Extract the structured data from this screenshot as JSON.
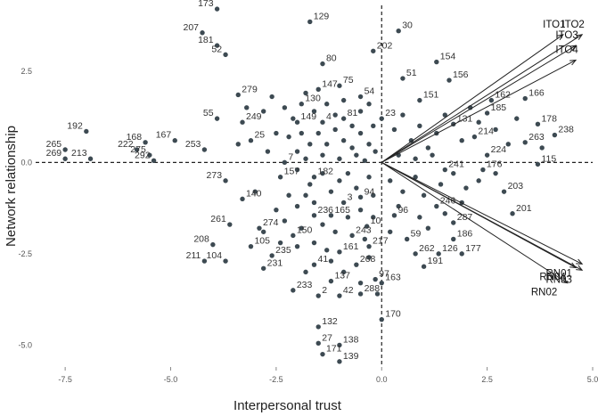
{
  "chart_data": {
    "type": "scatter",
    "title": "",
    "xlabel": "Interpersonal trust",
    "ylabel": "Network relationship",
    "xlim": [
      -8.2,
      5.0
    ],
    "ylim": [
      -5.6,
      4.3
    ],
    "x_ticks": [
      "-7.5",
      "-5.0",
      "-2.5",
      "0.0",
      "2.5",
      "5.0"
    ],
    "y_ticks": [
      "2.5",
      "0.0",
      "-2.5",
      "-5.0"
    ],
    "reference_lines": {
      "x": 0,
      "y": 0,
      "style": "dashed"
    },
    "grid": false,
    "colors": {
      "points": "#3d4a52",
      "vectors": "#222222",
      "labels": "#333333"
    },
    "vectors": [
      {
        "name": "ITO1",
        "x": 4.3,
        "y": 3.5
      },
      {
        "name": "ITO2",
        "x": 4.75,
        "y": 3.5
      },
      {
        "name": "ITO3",
        "x": 4.6,
        "y": 3.2
      },
      {
        "name": "ITO4",
        "x": 4.6,
        "y": 2.8
      },
      {
        "name": "RN01",
        "x": 4.75,
        "y": -2.78
      },
      {
        "name": "RN03",
        "x": 4.75,
        "y": -2.95
      },
      {
        "name": "RN04",
        "x": 4.6,
        "y": -2.88
      },
      {
        "name": "RN02",
        "x": 4.4,
        "y": -3.3
      }
    ],
    "points": [
      {
        "label": "173",
        "x": -3.9,
        "y": 4.2
      },
      {
        "label": "129",
        "x": -1.7,
        "y": 3.85
      },
      {
        "label": "207",
        "x": -4.25,
        "y": 3.55
      },
      {
        "label": "181",
        "x": -3.9,
        "y": 3.2
      },
      {
        "label": "52",
        "x": -3.7,
        "y": 2.95
      },
      {
        "label": "30",
        "x": 0.4,
        "y": 3.6
      },
      {
        "label": "202",
        "x": -0.2,
        "y": 3.05
      },
      {
        "label": "80",
        "x": -1.4,
        "y": 2.7
      },
      {
        "label": "154",
        "x": 1.3,
        "y": 2.75
      },
      {
        "label": "51",
        "x": 0.5,
        "y": 2.3
      },
      {
        "label": "156",
        "x": 1.6,
        "y": 2.25
      },
      {
        "label": "75",
        "x": -1.0,
        "y": 2.1
      },
      {
        "label": "147",
        "x": -1.5,
        "y": 2.0
      },
      {
        "label": "54",
        "x": -0.5,
        "y": 1.8
      },
      {
        "label": "151",
        "x": 0.9,
        "y": 1.7
      },
      {
        "label": "162",
        "x": 2.6,
        "y": 1.7
      },
      {
        "label": "166",
        "x": 3.4,
        "y": 1.75
      },
      {
        "label": "279",
        "x": -3.4,
        "y": 1.85
      },
      {
        "label": "130",
        "x": -1.9,
        "y": 1.6
      },
      {
        "label": "185",
        "x": 2.5,
        "y": 1.35
      },
      {
        "label": "178",
        "x": 3.7,
        "y": 1.05
      },
      {
        "label": "149",
        "x": -2.0,
        "y": 1.1
      },
      {
        "label": "4",
        "x": -1.4,
        "y": 1.1
      },
      {
        "label": "81",
        "x": -0.9,
        "y": 1.2
      },
      {
        "label": "23",
        "x": 0.0,
        "y": 1.2
      },
      {
        "label": "55",
        "x": -3.9,
        "y": 1.2
      },
      {
        "label": "249",
        "x": -3.3,
        "y": 1.1
      },
      {
        "label": "131",
        "x": 1.7,
        "y": 1.05
      },
      {
        "label": "192",
        "x": -7.0,
        "y": 0.85
      },
      {
        "label": "214",
        "x": 2.2,
        "y": 0.7
      },
      {
        "label": "263",
        "x": 3.4,
        "y": 0.55
      },
      {
        "label": "238",
        "x": 4.1,
        "y": 0.75
      },
      {
        "label": "168",
        "x": -5.6,
        "y": 0.55
      },
      {
        "label": "167",
        "x": -4.9,
        "y": 0.6
      },
      {
        "label": "25",
        "x": -3.1,
        "y": 0.6
      },
      {
        "label": "265",
        "x": -7.5,
        "y": 0.35
      },
      {
        "label": "222",
        "x": -5.8,
        "y": 0.35
      },
      {
        "label": "253",
        "x": -4.2,
        "y": 0.35
      },
      {
        "label": "275",
        "x": -5.5,
        "y": 0.2
      },
      {
        "label": "224",
        "x": 2.5,
        "y": 0.2
      },
      {
        "label": "269",
        "x": -7.5,
        "y": 0.1
      },
      {
        "label": "213",
        "x": -6.9,
        "y": 0.1
      },
      {
        "label": "292",
        "x": -5.4,
        "y": 0.05
      },
      {
        "label": "115",
        "x": 3.7,
        "y": -0.05
      },
      {
        "label": "7",
        "x": -2.3,
        "y": 0.0
      },
      {
        "label": "241",
        "x": 1.5,
        "y": -0.2
      },
      {
        "label": "176",
        "x": 2.4,
        "y": -0.2
      },
      {
        "label": "157",
        "x": -2.4,
        "y": -0.4
      },
      {
        "label": "182",
        "x": -1.6,
        "y": -0.4
      },
      {
        "label": "273",
        "x": -3.7,
        "y": -0.5
      },
      {
        "label": "203",
        "x": 2.9,
        "y": -0.8
      },
      {
        "label": "140",
        "x": -3.3,
        "y": -1.0
      },
      {
        "label": "94",
        "x": -0.5,
        "y": -0.95
      },
      {
        "label": "201",
        "x": 3.1,
        "y": -1.4
      },
      {
        "label": "3",
        "x": -0.9,
        "y": -1.1
      },
      {
        "label": "246",
        "x": 1.3,
        "y": -1.2
      },
      {
        "label": "236",
        "x": -1.6,
        "y": -1.45
      },
      {
        "label": "165",
        "x": -1.2,
        "y": -1.45
      },
      {
        "label": "96",
        "x": 0.3,
        "y": -1.45
      },
      {
        "label": "10",
        "x": -0.35,
        "y": -1.75
      },
      {
        "label": "261",
        "x": -3.6,
        "y": -1.7
      },
      {
        "label": "274",
        "x": -2.9,
        "y": -1.8
      },
      {
        "label": "287",
        "x": 1.7,
        "y": -1.65
      },
      {
        "label": "150",
        "x": -2.1,
        "y": -2.0
      },
      {
        "label": "243",
        "x": -0.7,
        "y": -2.0
      },
      {
        "label": "186",
        "x": 1.7,
        "y": -2.1
      },
      {
        "label": "208",
        "x": -4.0,
        "y": -2.25
      },
      {
        "label": "105",
        "x": -3.1,
        "y": -2.3
      },
      {
        "label": "217",
        "x": -0.3,
        "y": -2.3
      },
      {
        "label": "59",
        "x": 0.6,
        "y": -2.1
      },
      {
        "label": "235",
        "x": -2.6,
        "y": -2.55
      },
      {
        "label": "161",
        "x": -1.0,
        "y": -2.45
      },
      {
        "label": "262",
        "x": 0.8,
        "y": -2.5
      },
      {
        "label": "126",
        "x": 1.35,
        "y": -2.5
      },
      {
        "label": "177",
        "x": 1.9,
        "y": -2.5
      },
      {
        "label": "104",
        "x": -3.7,
        "y": -2.7
      },
      {
        "label": "231",
        "x": -2.8,
        "y": -2.9
      },
      {
        "label": "41",
        "x": -1.6,
        "y": -2.8
      },
      {
        "label": "268",
        "x": -0.6,
        "y": -2.8
      },
      {
        "label": "191",
        "x": 1.0,
        "y": -2.85
      },
      {
        "label": "211",
        "x": -4.2,
        "y": -2.7
      },
      {
        "label": "137",
        "x": -1.2,
        "y": -3.25
      },
      {
        "label": "97",
        "x": -0.15,
        "y": -3.2
      },
      {
        "label": "163",
        "x": 0.0,
        "y": -3.3
      },
      {
        "label": "233",
        "x": -2.1,
        "y": -3.5
      },
      {
        "label": "42",
        "x": -1.0,
        "y": -3.65
      },
      {
        "label": "2",
        "x": -1.5,
        "y": -3.65
      },
      {
        "label": "288",
        "x": -0.5,
        "y": -3.6
      },
      {
        "label": "170",
        "x": 0.0,
        "y": -4.3
      },
      {
        "label": "132",
        "x": -1.5,
        "y": -4.5
      },
      {
        "label": "27",
        "x": -1.5,
        "y": -4.95
      },
      {
        "label": "138",
        "x": -1.0,
        "y": -5.0
      },
      {
        "label": "171",
        "x": -1.4,
        "y": -5.25
      },
      {
        "label": "139",
        "x": -1.0,
        "y": -5.45
      }
    ],
    "unlabeled_points": [
      [
        -3.2,
        1.5
      ],
      [
        -2.8,
        1.4
      ],
      [
        -2.6,
        1.8
      ],
      [
        -2.3,
        1.5
      ],
      [
        -2.1,
        1.2
      ],
      [
        -1.8,
        1.9
      ],
      [
        -1.6,
        1.4
      ],
      [
        -1.3,
        1.6
      ],
      [
        -1.1,
        1.3
      ],
      [
        -0.9,
        1.7
      ],
      [
        -0.7,
        1.0
      ],
      [
        -0.5,
        1.4
      ],
      [
        -0.3,
        1.6
      ],
      [
        -0.2,
        1.0
      ],
      [
        -2.5,
        0.8
      ],
      [
        -2.2,
        0.7
      ],
      [
        -1.9,
        0.8
      ],
      [
        -1.7,
        0.5
      ],
      [
        -1.5,
        0.8
      ],
      [
        -1.3,
        0.5
      ],
      [
        -1.1,
        0.9
      ],
      [
        -0.9,
        0.6
      ],
      [
        -0.7,
        0.4
      ],
      [
        -0.5,
        0.8
      ],
      [
        -0.3,
        0.5
      ],
      [
        -0.15,
        0.3
      ],
      [
        -2.0,
        0.3
      ],
      [
        -1.8,
        0.1
      ],
      [
        -1.4,
        0.2
      ],
      [
        -1.0,
        0.1
      ],
      [
        -0.6,
        0.2
      ],
      [
        -0.4,
        0.05
      ],
      [
        -2.7,
        0.3
      ],
      [
        -3.4,
        0.5
      ],
      [
        0.3,
        0.9
      ],
      [
        0.5,
        1.3
      ],
      [
        0.7,
        0.6
      ],
      [
        0.9,
        1.0
      ],
      [
        1.1,
        0.4
      ],
      [
        1.3,
        0.8
      ],
      [
        1.5,
        1.3
      ],
      [
        1.9,
        0.6
      ],
      [
        2.1,
        1.5
      ],
      [
        2.3,
        1.1
      ],
      [
        2.7,
        0.9
      ],
      [
        3.0,
        0.5
      ],
      [
        3.2,
        1.2
      ],
      [
        3.8,
        0.4
      ],
      [
        0.4,
        0.2
      ],
      [
        0.8,
        0.1
      ],
      [
        1.2,
        0.2
      ],
      [
        -2.0,
        -0.2
      ],
      [
        -1.7,
        -0.6
      ],
      [
        -1.4,
        -0.3
      ],
      [
        -1.2,
        -0.8
      ],
      [
        -1.0,
        -0.5
      ],
      [
        -0.8,
        -0.3
      ],
      [
        -0.6,
        -0.7
      ],
      [
        -0.3,
        -0.4
      ],
      [
        -0.2,
        -0.9
      ],
      [
        -2.2,
        -0.9
      ],
      [
        -2.0,
        -1.2
      ],
      [
        -1.8,
        -0.9
      ],
      [
        -1.6,
        -1.1
      ],
      [
        -2.5,
        -1.3
      ],
      [
        -2.3,
        -1.6
      ],
      [
        -1.9,
        -1.8
      ],
      [
        -1.4,
        -1.7
      ],
      [
        -1.1,
        -1.9
      ],
      [
        -0.8,
        -1.5
      ],
      [
        -0.5,
        -1.3
      ],
      [
        -0.2,
        -1.5
      ],
      [
        0.2,
        -0.5
      ],
      [
        0.5,
        -0.8
      ],
      [
        0.8,
        -0.4
      ],
      [
        1.0,
        -0.9
      ],
      [
        1.4,
        -0.6
      ],
      [
        1.7,
        -0.3
      ],
      [
        2.0,
        -0.7
      ],
      [
        2.3,
        -0.5
      ],
      [
        2.7,
        -0.3
      ],
      [
        0.4,
        -1.2
      ],
      [
        0.9,
        -1.5
      ],
      [
        1.1,
        -1.8
      ],
      [
        1.5,
        -1.4
      ],
      [
        1.9,
        -1.1
      ],
      [
        -3.0,
        -0.8
      ],
      [
        -2.8,
        -1.9
      ],
      [
        -2.4,
        -2.2
      ],
      [
        -2.0,
        -2.3
      ],
      [
        -1.6,
        -2.2
      ],
      [
        -1.3,
        -2.4
      ],
      [
        -0.4,
        -2.1
      ],
      [
        0.2,
        -1.9
      ],
      [
        -1.2,
        -2.7
      ],
      [
        -0.9,
        -3.0
      ],
      [
        -1.8,
        -3.0
      ],
      [
        -0.5,
        -3.3
      ],
      [
        -0.3,
        -2.6
      ],
      [
        -0.1,
        -3.6
      ]
    ]
  }
}
